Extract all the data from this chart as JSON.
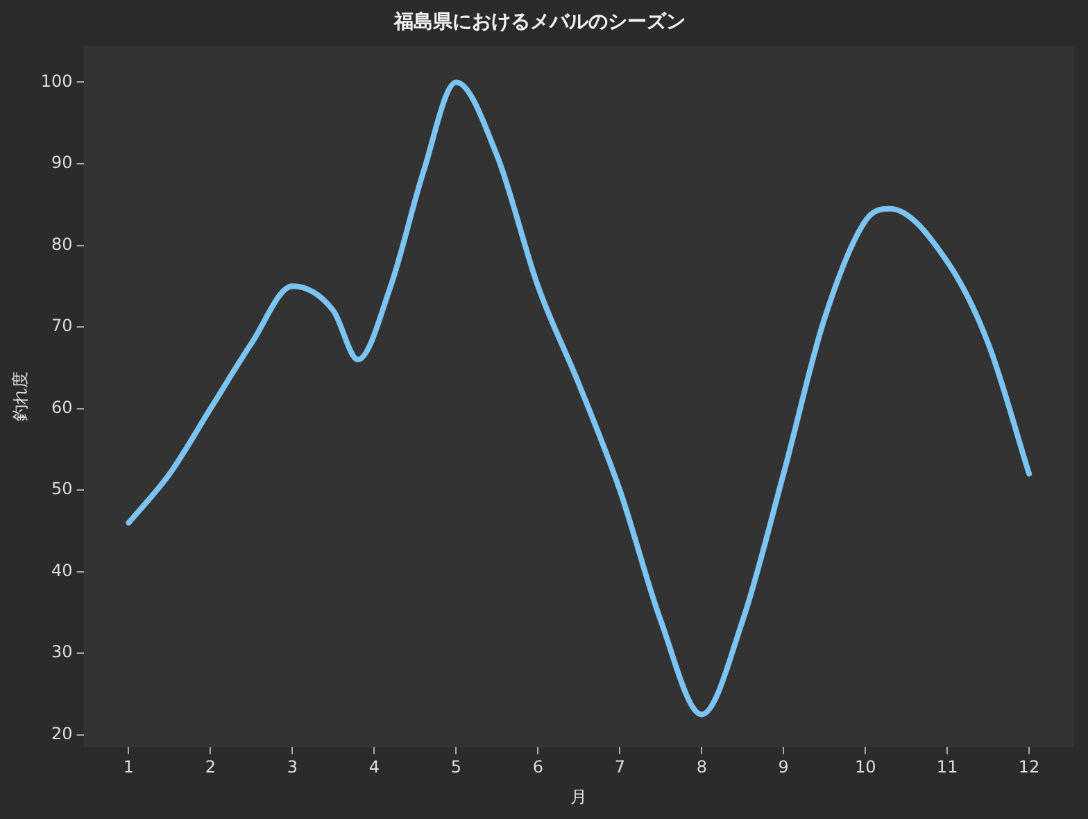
{
  "chart_data": {
    "type": "line",
    "title": "福島県におけるメバルのシーズン",
    "xlabel": "月",
    "ylabel": "釣れ度",
    "xlim": [
      0.45,
      12.55
    ],
    "xticks": [
      1,
      2,
      3,
      4,
      5,
      6,
      7,
      8,
      9,
      10,
      11,
      12
    ],
    "ylim": [
      18.5,
      104.5
    ],
    "yticks": [
      20,
      30,
      40,
      50,
      60,
      70,
      80,
      90,
      100
    ],
    "grid": false,
    "legend": false,
    "marker": "none",
    "line_style": "solid",
    "series": [
      {
        "color": "#7cc4f2",
        "x": [
          1,
          1.5,
          2,
          2.5,
          3,
          3.5,
          3.8,
          4.2,
          4.6,
          5,
          5.5,
          6,
          6.5,
          7,
          7.5,
          8,
          8.5,
          9,
          9.5,
          10,
          10.3,
          11,
          11.5,
          12
        ],
        "values": [
          46,
          52,
          60,
          68,
          75,
          72,
          66,
          75,
          89,
          100,
          91,
          75,
          63,
          50,
          34,
          22.5,
          34,
          52,
          71,
          83,
          84.5,
          78,
          68,
          52
        ]
      }
    ]
  }
}
